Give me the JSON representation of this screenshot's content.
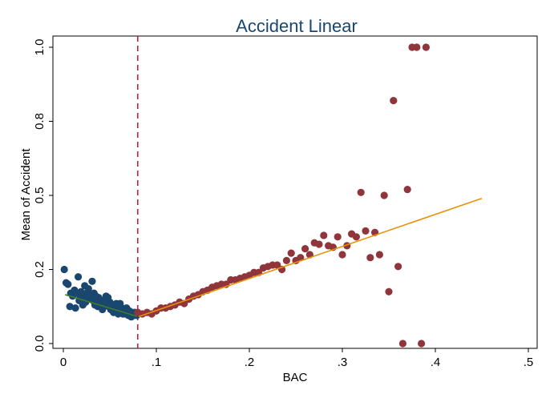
{
  "chart_data": {
    "type": "scatter",
    "title": "Accident Linear",
    "xlabel": "BAC",
    "ylabel": "Mean of Accident",
    "xlim": [
      0,
      0.5
    ],
    "ylim": [
      0,
      1.0
    ],
    "x_ticks": [
      0,
      0.1,
      0.2,
      0.3,
      0.4,
      0.5
    ],
    "x_tick_labels": [
      "0",
      ".1",
      ".2",
      ".3",
      ".4",
      ".5"
    ],
    "y_ticks": [
      0,
      0.25,
      0.5,
      0.75,
      1.0
    ],
    "y_tick_labels": [
      "0.0",
      "0.2",
      "0.5",
      "0.8",
      "1.0"
    ],
    "grid": false,
    "legend": "none",
    "cutoff": {
      "x": 0.08,
      "color": "#c8102e",
      "style": "dashed"
    },
    "series": [
      {
        "color": "#1a476f",
        "fit": {
          "x": [
            0.002,
            0.079
          ],
          "y": [
            0.165,
            0.092
          ],
          "color": "#3a7d2c"
        },
        "points": [
          [
            0.001,
            0.25
          ],
          [
            0.003,
            0.205
          ],
          [
            0.005,
            0.2
          ],
          [
            0.007,
            0.125
          ],
          [
            0.008,
            0.17
          ],
          [
            0.01,
            0.16
          ],
          [
            0.012,
            0.18
          ],
          [
            0.013,
            0.12
          ],
          [
            0.015,
            0.17
          ],
          [
            0.016,
            0.225
          ],
          [
            0.017,
            0.145
          ],
          [
            0.018,
            0.16
          ],
          [
            0.019,
            0.175
          ],
          [
            0.02,
            0.15
          ],
          [
            0.021,
            0.13
          ],
          [
            0.022,
            0.16
          ],
          [
            0.023,
            0.195
          ],
          [
            0.024,
            0.14
          ],
          [
            0.025,
            0.17
          ],
          [
            0.026,
            0.155
          ],
          [
            0.027,
            0.185
          ],
          [
            0.028,
            0.165
          ],
          [
            0.029,
            0.15
          ],
          [
            0.03,
            0.16
          ],
          [
            0.031,
            0.21
          ],
          [
            0.032,
            0.145
          ],
          [
            0.033,
            0.17
          ],
          [
            0.034,
            0.13
          ],
          [
            0.035,
            0.16
          ],
          [
            0.036,
            0.14
          ],
          [
            0.037,
            0.125
          ],
          [
            0.038,
            0.155
          ],
          [
            0.039,
            0.14
          ],
          [
            0.04,
            0.125
          ],
          [
            0.041,
            0.145
          ],
          [
            0.042,
            0.115
          ],
          [
            0.043,
            0.13
          ],
          [
            0.044,
            0.125
          ],
          [
            0.045,
            0.145
          ],
          [
            0.046,
            0.16
          ],
          [
            0.047,
            0.135
          ],
          [
            0.048,
            0.155
          ],
          [
            0.049,
            0.125
          ],
          [
            0.05,
            0.14
          ],
          [
            0.051,
            0.115
          ],
          [
            0.052,
            0.13
          ],
          [
            0.053,
            0.12
          ],
          [
            0.054,
            0.105
          ],
          [
            0.055,
            0.125
          ],
          [
            0.056,
            0.11
          ],
          [
            0.057,
            0.135
          ],
          [
            0.058,
            0.12
          ],
          [
            0.059,
            0.1
          ],
          [
            0.06,
            0.115
          ],
          [
            0.061,
            0.135
          ],
          [
            0.062,
            0.105
          ],
          [
            0.063,
            0.12
          ],
          [
            0.064,
            0.1
          ],
          [
            0.065,
            0.11
          ],
          [
            0.066,
            0.115
          ],
          [
            0.067,
            0.1
          ],
          [
            0.068,
            0.12
          ],
          [
            0.069,
            0.105
          ],
          [
            0.07,
            0.095
          ],
          [
            0.071,
            0.11
          ],
          [
            0.072,
            0.1
          ],
          [
            0.073,
            0.09
          ],
          [
            0.074,
            0.105
          ],
          [
            0.075,
            0.1
          ],
          [
            0.076,
            0.095
          ],
          [
            0.077,
            0.105
          ],
          [
            0.078,
            0.1
          ],
          [
            0.079,
            0.095
          ]
        ]
      },
      {
        "color": "#90353b",
        "fit": {
          "x": [
            0.081,
            0.45
          ],
          "y": [
            0.091,
            0.49
          ],
          "color": "#e8910a"
        },
        "points": [
          [
            0.08,
            0.105
          ],
          [
            0.085,
            0.1
          ],
          [
            0.09,
            0.105
          ],
          [
            0.095,
            0.1
          ],
          [
            0.1,
            0.11
          ],
          [
            0.105,
            0.12
          ],
          [
            0.11,
            0.12
          ],
          [
            0.115,
            0.125
          ],
          [
            0.12,
            0.13
          ],
          [
            0.125,
            0.14
          ],
          [
            0.13,
            0.135
          ],
          [
            0.135,
            0.15
          ],
          [
            0.14,
            0.16
          ],
          [
            0.145,
            0.165
          ],
          [
            0.15,
            0.175
          ],
          [
            0.155,
            0.18
          ],
          [
            0.16,
            0.19
          ],
          [
            0.165,
            0.195
          ],
          [
            0.17,
            0.2
          ],
          [
            0.175,
            0.2
          ],
          [
            0.18,
            0.215
          ],
          [
            0.185,
            0.215
          ],
          [
            0.19,
            0.22
          ],
          [
            0.195,
            0.225
          ],
          [
            0.2,
            0.23
          ],
          [
            0.205,
            0.24
          ],
          [
            0.21,
            0.24
          ],
          [
            0.215,
            0.255
          ],
          [
            0.22,
            0.26
          ],
          [
            0.225,
            0.265
          ],
          [
            0.23,
            0.265
          ],
          [
            0.235,
            0.25
          ],
          [
            0.24,
            0.28
          ],
          [
            0.245,
            0.305
          ],
          [
            0.25,
            0.28
          ],
          [
            0.255,
            0.29
          ],
          [
            0.26,
            0.32
          ],
          [
            0.265,
            0.3
          ],
          [
            0.27,
            0.34
          ],
          [
            0.275,
            0.335
          ],
          [
            0.28,
            0.365
          ],
          [
            0.285,
            0.33
          ],
          [
            0.29,
            0.325
          ],
          [
            0.295,
            0.36
          ],
          [
            0.3,
            0.3
          ],
          [
            0.305,
            0.33
          ],
          [
            0.31,
            0.37
          ],
          [
            0.315,
            0.36
          ],
          [
            0.32,
            0.51
          ],
          [
            0.325,
            0.38
          ],
          [
            0.33,
            0.29
          ],
          [
            0.335,
            0.375
          ],
          [
            0.34,
            0.3
          ],
          [
            0.345,
            0.5
          ],
          [
            0.35,
            0.175
          ],
          [
            0.355,
            0.82
          ],
          [
            0.36,
            0.26
          ],
          [
            0.365,
            0.0
          ],
          [
            0.37,
            0.52
          ],
          [
            0.375,
            1.0
          ],
          [
            0.38,
            1.0
          ],
          [
            0.385,
            0.0
          ],
          [
            0.39,
            1.0
          ]
        ]
      }
    ]
  }
}
